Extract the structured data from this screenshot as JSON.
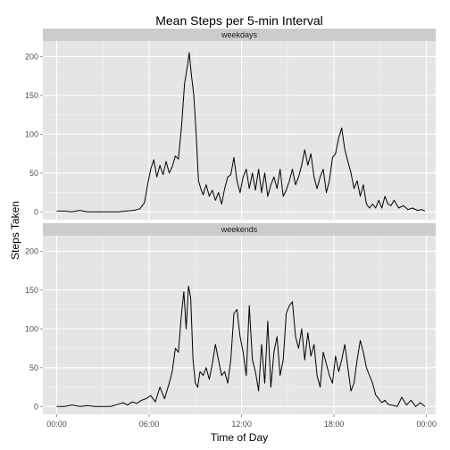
{
  "chart_data": {
    "type": "line",
    "title": "Mean Steps per 5-min Interval",
    "xlabel": "Time of Day",
    "ylabel": "Steps Taken",
    "x_unit": "hours",
    "xlim": [
      -0.9,
      24.6
    ],
    "ylim": [
      -10,
      220
    ],
    "x_ticks": [
      {
        "value": 0,
        "label": "00:00"
      },
      {
        "value": 6,
        "label": "06:00"
      },
      {
        "value": 12,
        "label": "12:00"
      },
      {
        "value": 18,
        "label": "18:00"
      },
      {
        "value": 24,
        "label": "00:00"
      }
    ],
    "y_ticks": [
      0,
      50,
      100,
      150,
      200
    ],
    "grid": true,
    "line_color": "#000000",
    "panel_background": "#e5e5e5",
    "strip_background": "#cccccc",
    "panels": [
      {
        "label": "weekdays",
        "x": [
          0,
          0.5,
          1,
          1.5,
          2,
          2.5,
          3,
          3.5,
          4,
          4.5,
          5,
          5.4,
          5.7,
          5.9,
          6.1,
          6.3,
          6.5,
          6.7,
          6.9,
          7.1,
          7.3,
          7.5,
          7.7,
          7.9,
          8.1,
          8.3,
          8.5,
          8.6,
          8.75,
          8.9,
          9.05,
          9.2,
          9.35,
          9.5,
          9.7,
          9.9,
          10.1,
          10.3,
          10.5,
          10.7,
          10.9,
          11.1,
          11.3,
          11.5,
          11.7,
          11.9,
          12.1,
          12.3,
          12.5,
          12.7,
          12.9,
          13.1,
          13.3,
          13.5,
          13.7,
          13.9,
          14.1,
          14.3,
          14.5,
          14.7,
          14.9,
          15.1,
          15.3,
          15.5,
          15.7,
          15.9,
          16.1,
          16.3,
          16.5,
          16.7,
          16.9,
          17.1,
          17.3,
          17.5,
          17.7,
          17.9,
          18.1,
          18.3,
          18.5,
          18.7,
          18.9,
          19.1,
          19.3,
          19.5,
          19.7,
          19.9,
          20.1,
          20.3,
          20.5,
          20.7,
          20.9,
          21.1,
          21.3,
          21.5,
          21.7,
          21.9,
          22.2,
          22.5,
          22.8,
          23.1,
          23.4,
          23.7,
          23.9
        ],
        "y": [
          1,
          1,
          0,
          2,
          0,
          0,
          0,
          0,
          0,
          1,
          2,
          4,
          12,
          35,
          55,
          67,
          45,
          60,
          48,
          65,
          50,
          58,
          72,
          68,
          110,
          165,
          190,
          205,
          175,
          150,
          100,
          40,
          30,
          22,
          35,
          20,
          28,
          15,
          25,
          10,
          30,
          45,
          48,
          70,
          40,
          25,
          45,
          55,
          30,
          50,
          28,
          55,
          25,
          50,
          20,
          35,
          45,
          30,
          55,
          20,
          28,
          40,
          55,
          35,
          45,
          60,
          80,
          60,
          75,
          45,
          30,
          45,
          55,
          25,
          40,
          70,
          75,
          95,
          108,
          80,
          65,
          50,
          30,
          40,
          20,
          35,
          10,
          5,
          10,
          5,
          15,
          5,
          20,
          10,
          8,
          15,
          5,
          8,
          3,
          5,
          2,
          3,
          1
        ],
        "name": ""
      },
      {
        "label": "weekends",
        "x": [
          0,
          0.5,
          1,
          1.5,
          2,
          2.5,
          3,
          3.5,
          4,
          4.3,
          4.6,
          4.9,
          5.2,
          5.5,
          5.8,
          6.1,
          6.4,
          6.7,
          7,
          7.3,
          7.5,
          7.7,
          7.9,
          8.1,
          8.25,
          8.4,
          8.55,
          8.7,
          8.85,
          9,
          9.15,
          9.3,
          9.5,
          9.7,
          9.9,
          10.1,
          10.3,
          10.5,
          10.7,
          10.9,
          11.1,
          11.3,
          11.5,
          11.7,
          11.9,
          12.1,
          12.3,
          12.5,
          12.7,
          12.9,
          13.1,
          13.3,
          13.5,
          13.7,
          13.9,
          14.1,
          14.3,
          14.5,
          14.7,
          14.9,
          15.1,
          15.3,
          15.5,
          15.7,
          15.9,
          16.1,
          16.3,
          16.5,
          16.7,
          16.9,
          17.1,
          17.3,
          17.5,
          17.7,
          17.9,
          18.1,
          18.3,
          18.5,
          18.7,
          18.9,
          19.1,
          19.3,
          19.5,
          19.7,
          19.9,
          20.1,
          20.3,
          20.5,
          20.7,
          20.9,
          21.1,
          21.3,
          21.5,
          21.7,
          21.9,
          22.1,
          22.4,
          22.7,
          23,
          23.3,
          23.6,
          23.9
        ],
        "y": [
          0,
          0,
          2,
          0,
          1,
          0,
          0,
          0,
          3,
          5,
          2,
          6,
          4,
          8,
          10,
          14,
          6,
          25,
          10,
          30,
          45,
          75,
          70,
          120,
          148,
          100,
          155,
          140,
          60,
          30,
          25,
          45,
          40,
          50,
          35,
          55,
          80,
          60,
          40,
          45,
          30,
          60,
          120,
          125,
          90,
          70,
          40,
          130,
          60,
          45,
          20,
          80,
          30,
          110,
          25,
          70,
          90,
          40,
          60,
          120,
          130,
          135,
          90,
          75,
          100,
          60,
          95,
          65,
          80,
          40,
          25,
          70,
          55,
          40,
          30,
          65,
          45,
          60,
          80,
          50,
          20,
          30,
          60,
          85,
          70,
          50,
          40,
          30,
          15,
          10,
          5,
          8,
          3,
          2,
          1,
          0,
          12,
          2,
          8,
          0,
          5,
          0
        ],
        "name": ""
      }
    ]
  }
}
